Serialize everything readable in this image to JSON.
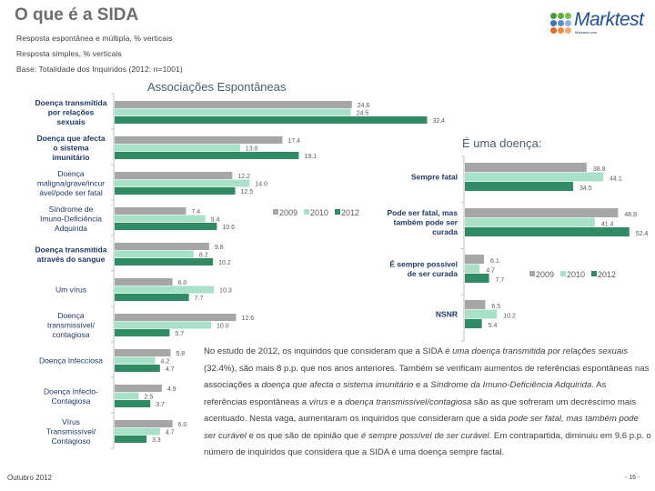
{
  "header": {
    "title": "O que é a SIDA",
    "subtitles": [
      "Resposta espontânea e múltipla, % verticais",
      "Resposta simples, % verticais",
      "Base: Totalidade dos Inquiridos (2012: n=1001)"
    ],
    "logo": {
      "name": "Marktest",
      "tagline": "Marktest.com",
      "dot_colors": [
        "#4a9a3c",
        "#5cae3e",
        "#76bd4b",
        "#3f6fb5",
        "#5a8fcf",
        "#8db3df",
        "#e3672a",
        "#ee8a3c",
        "#f3aa6a"
      ]
    }
  },
  "colors": {
    "2009": "#a6a6a6",
    "2010": "#a9e1c8",
    "2012": "#2e8b63",
    "label": "#1f3864"
  },
  "chart_data": [
    {
      "type": "bar",
      "orientation": "horizontal",
      "title": "Associações Espontâneas",
      "categories": [
        "Doença transmitida por relações sexuais",
        "Doença que afecta o sistema imunitário",
        "Doença maligna/grave/incurável/pode ser fatal",
        "Síndrome de Imuno-Deficiência Adquirida",
        "Doença transmitida através do sangue",
        "Um vírus",
        "Doença transmissível/ contagiosa",
        "Doença Infecciosa",
        "Doença Infecto-Contagiosa",
        "Vírus Transmissível/ Contagioso"
      ],
      "category_lines": [
        [
          "Doença transmitida",
          "por relações",
          "sexuais"
        ],
        [
          "Doença que afecta",
          "o sistema",
          "imunitário"
        ],
        [
          "Doença",
          "maligna/grave/incur",
          "ável/pode ser fatal"
        ],
        [
          "Síndrome de",
          "Imuno-Deficiência",
          "Adquirida"
        ],
        [
          "Doença transmitida",
          "através do sangue"
        ],
        [
          "Um vírus"
        ],
        [
          "Doença",
          "transmissível/",
          "contagiosa"
        ],
        [
          "Doença Infecciosa"
        ],
        [
          "Doença Infecto-",
          "Contagiosa"
        ],
        [
          "Vírus",
          "Transmissível/",
          "Contagioso"
        ]
      ],
      "series": [
        {
          "name": "2009",
          "values": [
            24.6,
            17.4,
            12.2,
            7.4,
            9.8,
            6.0,
            12.6,
            5.8,
            4.9,
            6.0
          ]
        },
        {
          "name": "2010",
          "values": [
            24.5,
            13.0,
            14.0,
            9.4,
            8.2,
            10.3,
            10.0,
            4.2,
            2.5,
            4.7
          ]
        },
        {
          "name": "2012",
          "values": [
            32.4,
            19.1,
            12.5,
            10.6,
            10.2,
            7.7,
            5.7,
            4.7,
            3.7,
            3.3
          ]
        }
      ],
      "xlim": [
        0,
        35
      ],
      "grid": false,
      "legend": [
        "2009",
        "2010",
        "2012"
      ],
      "legend_position": "right"
    },
    {
      "type": "bar",
      "orientation": "horizontal",
      "title": "É uma doença:",
      "categories": [
        "Sempre fatal",
        "Pode ser fatal, mas também pode ser curada",
        "É sempre possível de ser curada",
        "NSNR"
      ],
      "category_lines": [
        [
          "Sempre fatal"
        ],
        [
          "Pode ser fatal, mas",
          "também pode ser",
          "curada"
        ],
        [
          "É sempre possível",
          "de ser curada"
        ],
        [
          "NSNR"
        ]
      ],
      "series": [
        {
          "name": "2009",
          "values": [
            38.8,
            48.8,
            6.1,
            6.5
          ]
        },
        {
          "name": "2010",
          "values": [
            44.1,
            41.4,
            4.7,
            10.2
          ]
        },
        {
          "name": "2012",
          "values": [
            34.5,
            52.4,
            7.7,
            5.4
          ]
        }
      ],
      "xlim": [
        0,
        55
      ],
      "grid": false,
      "legend": [
        "2009",
        "2010",
        "2012"
      ],
      "legend_position": "right"
    }
  ],
  "paragraph": [
    {
      "t": "No estudo de 2012, os inquiridos que consideram que a SIDA ",
      "i": false
    },
    {
      "t": "é uma doença transmitida por relações sexuais",
      "i": true
    },
    {
      "t": " (32.4%), são mais 8 p.p. que nos anos anteriores. Também se verificam aumentos de referências espontâneas nas associações a ",
      "i": false
    },
    {
      "t": "doença que afecta o sistema imunitário",
      "i": true
    },
    {
      "t": " e a ",
      "i": false
    },
    {
      "t": "Síndrome da Imuno-Deficiência Adquirida",
      "i": true
    },
    {
      "t": ". As referências espontâneas a ",
      "i": false
    },
    {
      "t": "vírus",
      "i": true
    },
    {
      "t": " e a ",
      "i": false
    },
    {
      "t": "doença transmissível/contagiosa",
      "i": true
    },
    {
      "t": " são as que sofreram um decréscimo mais acentuado. Nesta vaga, aumentaram os inquiridos que consideram que a sida ",
      "i": false
    },
    {
      "t": "pode ser fatal, mas também pode ser curável",
      "i": true
    },
    {
      "t": " e os que são de opinião que ",
      "i": false
    },
    {
      "t": "é sempre possível de ser curável",
      "i": true
    },
    {
      "t": ". Em contrapartida, diminuiu em 9.6 p.p. o número de inquiridos que considera que a SIDA é uma doença sempre factal.",
      "i": false
    }
  ],
  "footer": {
    "date": "Outubro 2012",
    "page": "- 16 -"
  }
}
